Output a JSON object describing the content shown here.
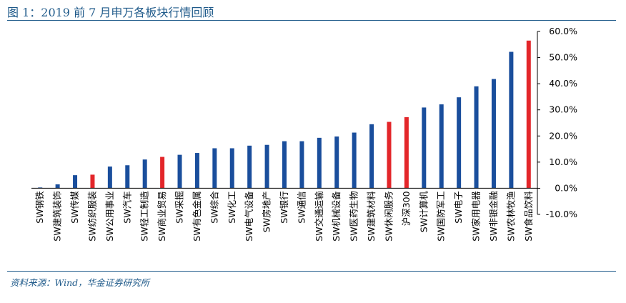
{
  "header": {
    "title": "图 1：2019 前 7 月申万各板块行情回顾"
  },
  "footer": {
    "source": "资料来源：Wind，华金证券研究所"
  },
  "colors": {
    "normal": "#1a4e9c",
    "highlight": "#e3262a",
    "rule": "#1f5a8a"
  },
  "chart_data": {
    "type": "bar",
    "title": "",
    "xlabel": "",
    "ylabel": "",
    "ylim": [
      -10,
      60
    ],
    "yticks": [
      -10,
      0,
      10,
      20,
      30,
      40,
      50,
      60
    ],
    "ytick_labels": [
      "-10.0%",
      "0.0%",
      "10.0%",
      "20.0%",
      "30.0%",
      "40.0%",
      "50.0%",
      "60.0%"
    ],
    "y_axis_position": "right",
    "grid": false,
    "categories": [
      "SW钢铁",
      "SW建筑装饰",
      "SW传媒",
      "SW纺织服装",
      "SW公用事业",
      "SW汽车",
      "SW轻工制造",
      "SW商业贸易",
      "SW采掘",
      "SW有色金属",
      "SW综合",
      "SW化工",
      "SW电气设备",
      "SW房地产",
      "SW银行",
      "SW通信",
      "SW交通运输",
      "SW机械设备",
      "SW医药生物",
      "SW建筑材料",
      "SW休闲服务",
      "沪深300",
      "SW计算机",
      "SW国防军工",
      "SW电子",
      "SW家用电器",
      "SW非银金融",
      "SW农林牧渔",
      "SW食品饮料"
    ],
    "values": [
      0.3,
      1.5,
      5.0,
      5.2,
      8.3,
      8.8,
      11.0,
      12.0,
      12.8,
      13.5,
      15.3,
      15.3,
      16.3,
      16.6,
      18.0,
      18.0,
      19.3,
      19.8,
      21.3,
      24.5,
      25.4,
      27.2,
      30.9,
      32.1,
      34.8,
      39.0,
      41.8,
      52.2,
      56.5
    ],
    "highlight": [
      "SW纺织服装",
      "SW商业贸易",
      "SW休闲服务",
      "沪深300",
      "SW食品饮料"
    ]
  }
}
